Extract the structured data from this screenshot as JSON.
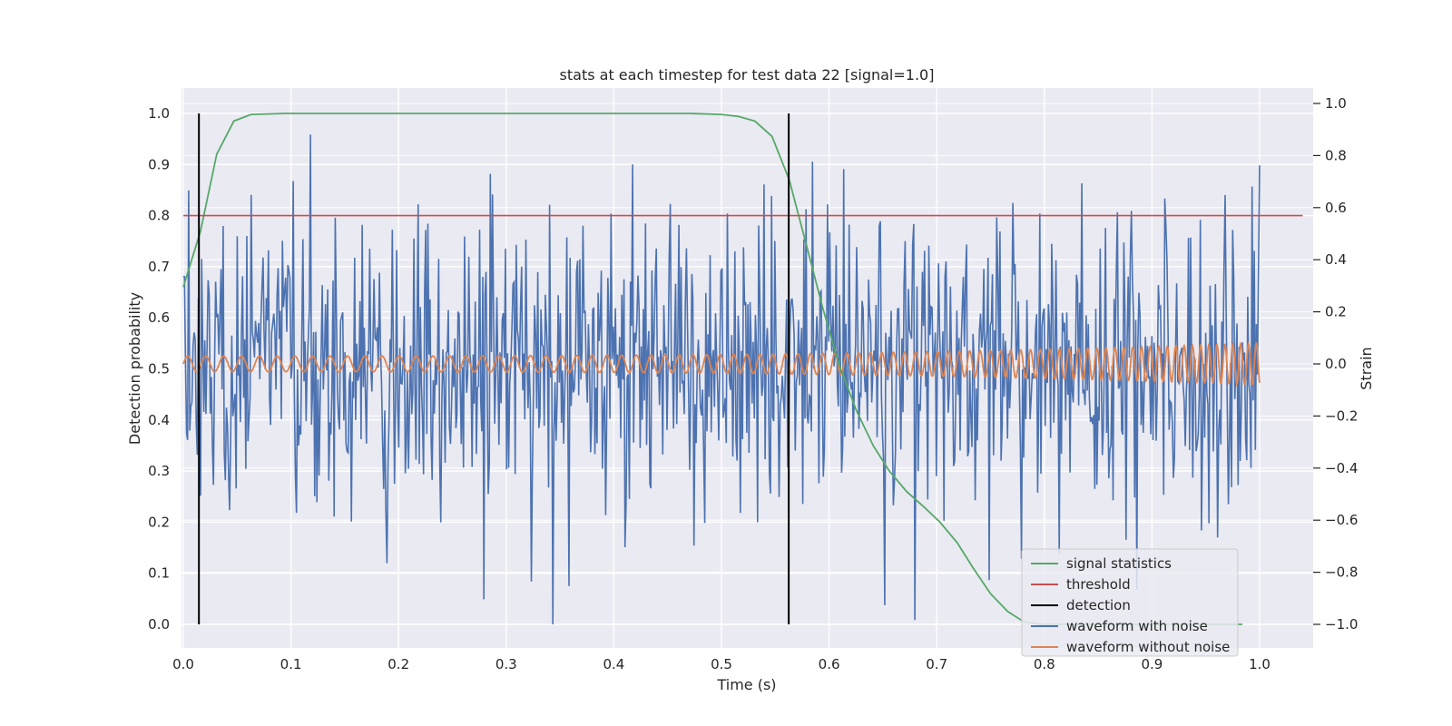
{
  "chart_data": {
    "type": "line",
    "title": "stats at each timestep for test data 22 [signal=1.0]",
    "xlabel": "Time (s)",
    "ylabel": "Detection probability",
    "ylabel_right": "Strain",
    "xlim": [
      0.0,
      1.05
    ],
    "ylim": [
      -0.05,
      1.05
    ],
    "ylim_right": [
      -1.1,
      1.05
    ],
    "xticks": [
      "0.0",
      "0.1",
      "0.2",
      "0.3",
      "0.4",
      "0.5",
      "0.6",
      "0.7",
      "0.8",
      "0.9",
      "1.0"
    ],
    "yticks": [
      "0.0",
      "0.1",
      "0.2",
      "0.3",
      "0.4",
      "0.5",
      "0.6",
      "0.7",
      "0.8",
      "0.9",
      "1.0"
    ],
    "yticks_right": [
      "−1.0",
      "−0.8",
      "−0.6",
      "−0.4",
      "−0.2",
      "0.0",
      "0.2",
      "0.4",
      "0.6",
      "0.8",
      "1.0"
    ],
    "grid": true,
    "legend_position": "lower-right",
    "series": [
      {
        "name": "signal statistics",
        "color": "#55a868",
        "axis": "left",
        "x": [
          0.0,
          0.016,
          0.031,
          0.047,
          0.063,
          0.078,
          0.094,
          0.11,
          0.2,
          0.3,
          0.4,
          0.47,
          0.5,
          0.516,
          0.531,
          0.547,
          0.563,
          0.578,
          0.594,
          0.609,
          0.625,
          0.641,
          0.656,
          0.672,
          0.688,
          0.703,
          0.719,
          0.734,
          0.75,
          0.766,
          0.781,
          0.797,
          0.812,
          0.828,
          0.844,
          0.859,
          0.875,
          0.891,
          0.906,
          0.922,
          0.938,
          0.953,
          0.969,
          0.984
        ],
        "y": [
          0.66,
          0.77,
          0.92,
          0.985,
          0.998,
          0.999,
          1.0,
          1.0,
          1.0,
          1.0,
          1.0,
          1.0,
          0.998,
          0.994,
          0.985,
          0.955,
          0.87,
          0.75,
          0.62,
          0.51,
          0.42,
          0.35,
          0.3,
          0.26,
          0.23,
          0.2,
          0.16,
          0.11,
          0.06,
          0.025,
          0.005,
          0.0,
          0.0,
          0.0,
          0.0,
          0.0,
          0.0,
          0.0,
          0.0,
          0.0,
          0.0,
          0.0,
          0.0,
          0.0
        ]
      },
      {
        "name": "threshold",
        "color": "#c44e52",
        "axis": "left",
        "x": [
          0.0,
          1.04
        ],
        "y": [
          0.8,
          0.8
        ]
      },
      {
        "name": "detection",
        "color": "#000000",
        "axis": "left",
        "events": [
          0.0145,
          0.5625
        ],
        "y": [
          0.0,
          1.0
        ]
      },
      {
        "name": "waveform with noise",
        "color": "#4c72b0",
        "axis": "right",
        "x_range": [
          0.0,
          1.0
        ],
        "points": 1000,
        "std": 0.28,
        "y_extent": [
          -1.0,
          1.0
        ],
        "plot": "dense noise, roughly ±0.3 typical with spikes between about −1.0 and 1.0"
      },
      {
        "name": "waveform without noise",
        "color": "#dd8452",
        "axis": "right",
        "x_range": [
          0.0,
          1.0
        ],
        "amplitude_start": 0.03,
        "amplitude_end": 0.08,
        "frequency_start_hz": 60,
        "frequency_end_hz": 140,
        "plot": "chirp centered on 0.0 whose amplitude and frequency increase toward 1.0 s"
      }
    ]
  }
}
